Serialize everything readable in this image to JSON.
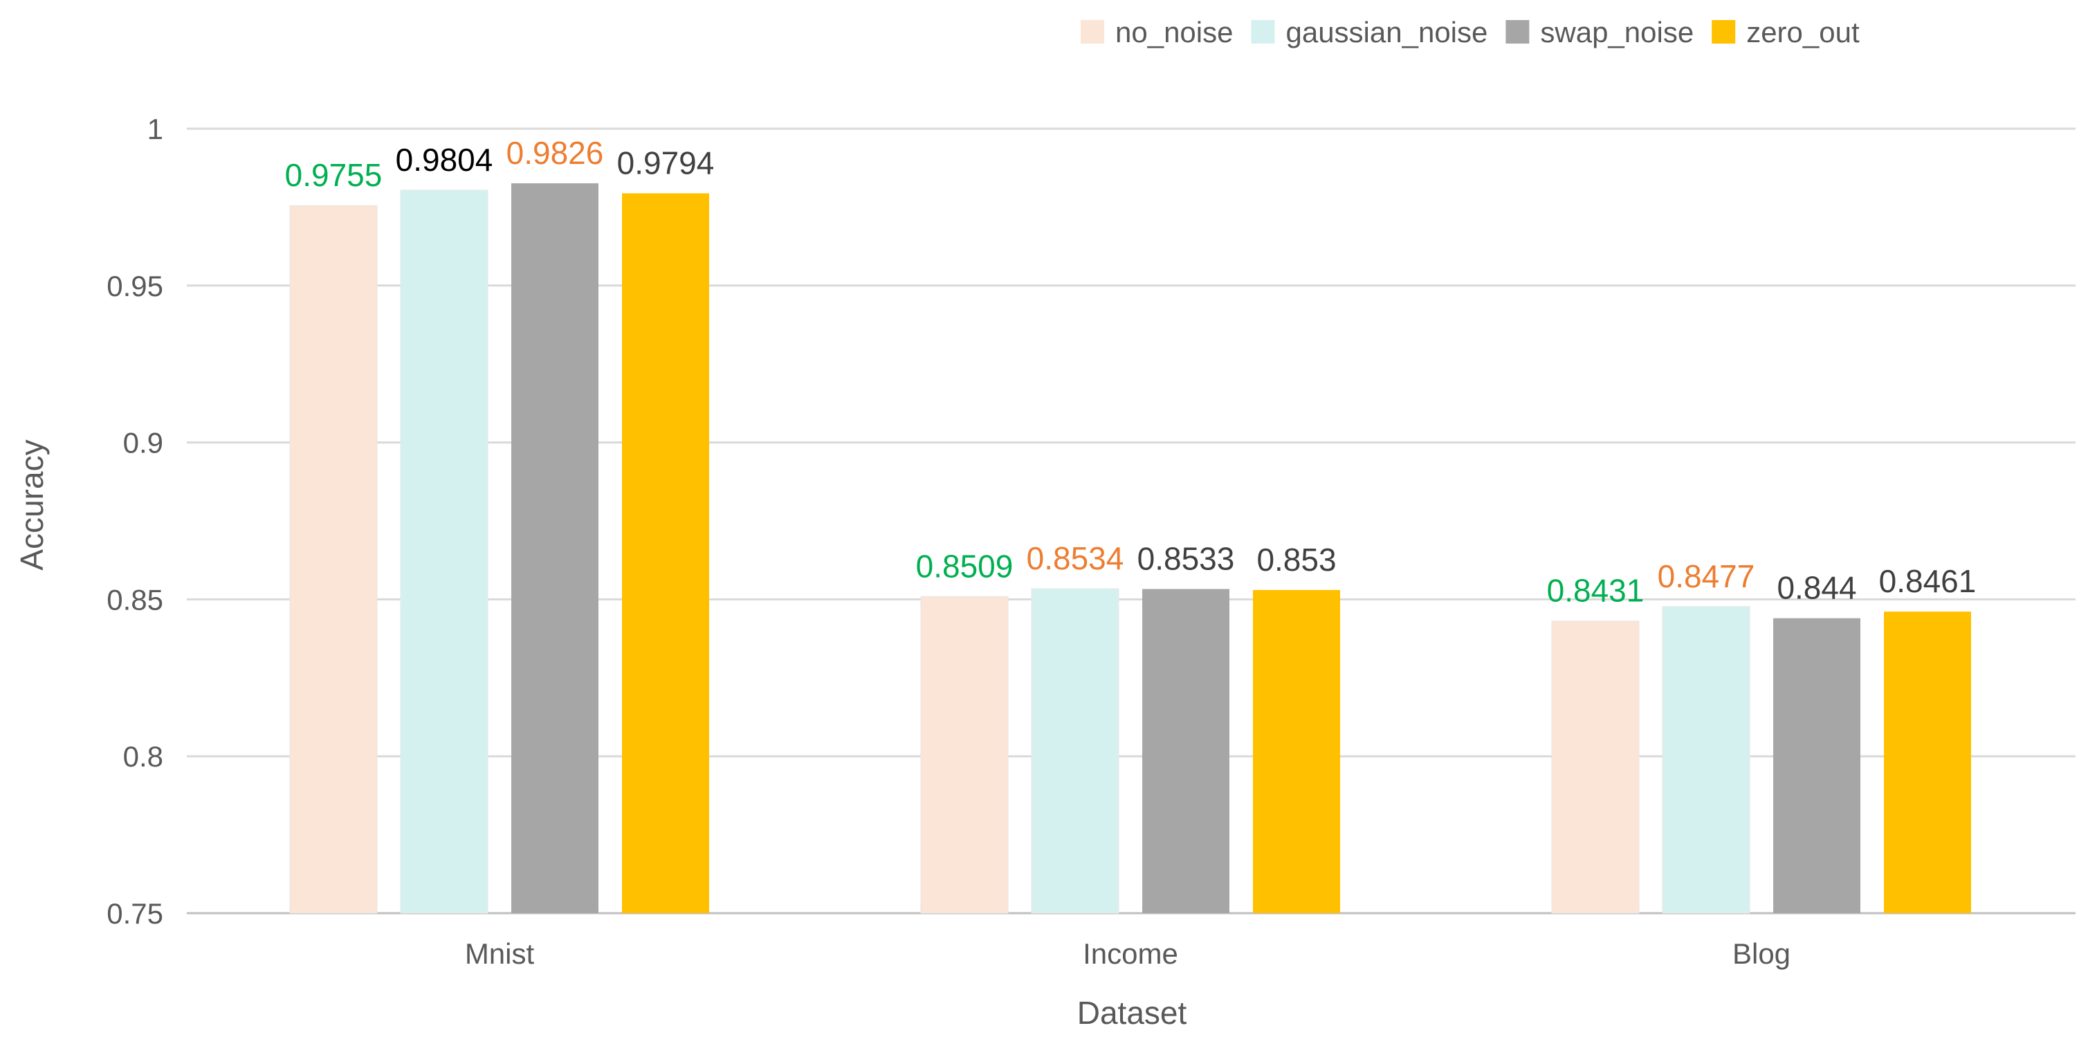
{
  "chart_data": {
    "type": "bar",
    "xlabel": "Dataset",
    "ylabel": "Accuracy",
    "ylim": [
      0.75,
      1
    ],
    "yticks": [
      "0.75",
      "0.8",
      "0.85",
      "0.9",
      "0.95",
      "1"
    ],
    "grid": true,
    "legend_position": "top-right",
    "categories": [
      "Mnist",
      "Income",
      "Blog"
    ],
    "series": [
      {
        "name": "no_noise",
        "color": "#FBE5D6",
        "values": [
          0.9755,
          0.8509,
          0.8431
        ],
        "labels": [
          "0.9755",
          "0.8509",
          "0.8431"
        ]
      },
      {
        "name": "gaussian_noise",
        "color": "#D5F1EF",
        "values": [
          0.9804,
          0.8534,
          0.8477
        ],
        "labels": [
          "0.9804",
          "0.8534",
          "0.8477"
        ]
      },
      {
        "name": "swap_noise",
        "color": "#A6A6A6",
        "values": [
          0.9826,
          0.8533,
          0.844
        ],
        "labels": [
          "0.9826",
          "0.8533",
          "0.844"
        ]
      },
      {
        "name": "zero_out",
        "color": "#FFC000",
        "values": [
          0.9794,
          0.853,
          0.8461
        ],
        "labels": [
          "0.9794",
          "0.853",
          "0.8461"
        ]
      }
    ],
    "label_colors": [
      [
        "#00B050",
        "#000000",
        "#ED7D31",
        "#404040"
      ],
      [
        "#00B050",
        "#ED7D31",
        "#404040",
        "#404040"
      ],
      [
        "#00B050",
        "#ED7D31",
        "#404040",
        "#404040"
      ]
    ]
  }
}
